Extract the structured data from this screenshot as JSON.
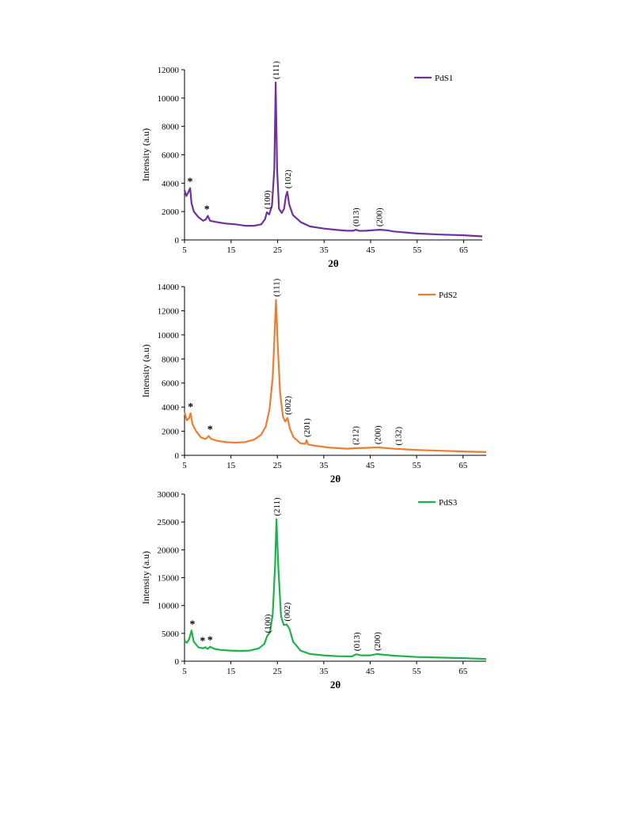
{
  "chart_data": [
    {
      "type": "line",
      "xlabel": "2θ",
      "ylabel": "Intensity (a.u)",
      "xlim": [
        5,
        69
      ],
      "ylim": [
        0,
        12000
      ],
      "xticks": [
        "5",
        "15",
        "25",
        "35",
        "45",
        "55",
        "65"
      ],
      "yticks": [
        "0",
        "2000",
        "4000",
        "6000",
        "8000",
        "10000",
        "12000"
      ],
      "legend_position": "top-right",
      "series": [
        {
          "name": "PdS1",
          "color": "#7030a0",
          "points": [
            [
              5,
              3500
            ],
            [
              5.4,
              3100
            ],
            [
              5.8,
              3350
            ],
            [
              6.2,
              3650
            ],
            [
              6.5,
              2600
            ],
            [
              7,
              2000
            ],
            [
              8,
              1600
            ],
            [
              9,
              1350
            ],
            [
              9.6,
              1450
            ],
            [
              10,
              1700
            ],
            [
              10.5,
              1350
            ],
            [
              12,
              1250
            ],
            [
              14,
              1150
            ],
            [
              16,
              1100
            ],
            [
              18,
              1000
            ],
            [
              20,
              1000
            ],
            [
              21.5,
              1100
            ],
            [
              22.3,
              1450
            ],
            [
              22.7,
              1950
            ],
            [
              23.2,
              1800
            ],
            [
              23.8,
              2400
            ],
            [
              24.3,
              5000
            ],
            [
              24.6,
              11100
            ],
            [
              24.9,
              5000
            ],
            [
              25.3,
              2200
            ],
            [
              25.9,
              1900
            ],
            [
              26.4,
              2200
            ],
            [
              26.8,
              3100
            ],
            [
              27.1,
              3400
            ],
            [
              27.5,
              2500
            ],
            [
              28.3,
              1750
            ],
            [
              30,
              1250
            ],
            [
              32,
              950
            ],
            [
              35,
              800
            ],
            [
              38,
              700
            ],
            [
              40,
              650
            ],
            [
              41.3,
              650
            ],
            [
              41.8,
              720
            ],
            [
              42.5,
              640
            ],
            [
              44,
              650
            ],
            [
              46,
              700
            ],
            [
              47,
              720
            ],
            [
              48.5,
              680
            ],
            [
              50,
              600
            ],
            [
              55,
              450
            ],
            [
              60,
              380
            ],
            [
              65,
              330
            ],
            [
              69,
              250
            ]
          ]
        }
      ],
      "annotations": [
        {
          "x": 6.2,
          "y": 3650,
          "text": "*"
        },
        {
          "x": 9.8,
          "y": 1700,
          "text": "*"
        },
        {
          "x": 22.7,
          "y": 1950,
          "text": "(100)"
        },
        {
          "x": 24.6,
          "y": 11100,
          "text": "(111)"
        },
        {
          "x": 27.1,
          "y": 3400,
          "text": "(102)"
        },
        {
          "x": 41.8,
          "y": 720,
          "text": "(013)"
        },
        {
          "x": 46.8,
          "y": 720,
          "text": "(200)"
        }
      ]
    },
    {
      "type": "line",
      "xlabel": "2θ",
      "ylabel": "Intensity (a.u)",
      "xlim": [
        5,
        70
      ],
      "ylim": [
        0,
        14000
      ],
      "xticks": [
        "5",
        "15",
        "25",
        "35",
        "45",
        "55",
        "65"
      ],
      "yticks": [
        "0",
        "2000",
        "4000",
        "6000",
        "8000",
        "10000",
        "12000",
        "14000"
      ],
      "legend_position": "top-right",
      "series": [
        {
          "name": "PdS2",
          "color": "#ed7d31",
          "points": [
            [
              5,
              3600
            ],
            [
              5.5,
              2900
            ],
            [
              6,
              3100
            ],
            [
              6.3,
              3500
            ],
            [
              6.7,
              2600
            ],
            [
              7.5,
              2000
            ],
            [
              8.5,
              1500
            ],
            [
              9.5,
              1350
            ],
            [
              10.2,
              1600
            ],
            [
              10.8,
              1350
            ],
            [
              12,
              1200
            ],
            [
              14,
              1100
            ],
            [
              16,
              1050
            ],
            [
              18,
              1100
            ],
            [
              20,
              1300
            ],
            [
              21.5,
              1700
            ],
            [
              22.5,
              2400
            ],
            [
              23.3,
              3800
            ],
            [
              24,
              6500
            ],
            [
              24.4,
              10000
            ],
            [
              24.7,
              12900
            ],
            [
              25.1,
              9000
            ],
            [
              25.6,
              5200
            ],
            [
              26.2,
              3200
            ],
            [
              26.7,
              2800
            ],
            [
              27.2,
              3100
            ],
            [
              27.7,
              2200
            ],
            [
              28.5,
              1500
            ],
            [
              30,
              1000
            ],
            [
              31,
              950
            ],
            [
              31.3,
              1250
            ],
            [
              31.6,
              900
            ],
            [
              33,
              800
            ],
            [
              36,
              650
            ],
            [
              40,
              550
            ],
            [
              42,
              600
            ],
            [
              44,
              620
            ],
            [
              46,
              650
            ],
            [
              47,
              650
            ],
            [
              50,
              550
            ],
            [
              55,
              450
            ],
            [
              60,
              380
            ],
            [
              65,
              320
            ],
            [
              70,
              270
            ]
          ]
        }
      ],
      "annotations": [
        {
          "x": 6.3,
          "y": 3500,
          "text": "*"
        },
        {
          "x": 10.5,
          "y": 1600,
          "text": "*"
        },
        {
          "x": 24.7,
          "y": 12900,
          "text": "(111)"
        },
        {
          "x": 27.2,
          "y": 3100,
          "text": "(002)"
        },
        {
          "x": 31.3,
          "y": 1250,
          "text": "(201)"
        },
        {
          "x": 41.8,
          "y": 600,
          "text": "(212)"
        },
        {
          "x": 46.5,
          "y": 650,
          "text": "(200)"
        },
        {
          "x": 51,
          "y": 550,
          "text": "(132)"
        }
      ]
    },
    {
      "type": "line",
      "xlabel": "2θ",
      "ylabel": "Intensity (a.u)",
      "xlim": [
        5,
        70
      ],
      "ylim": [
        0,
        30000
      ],
      "xticks": [
        "5",
        "15",
        "25",
        "35",
        "45",
        "55",
        "65"
      ],
      "yticks": [
        "0",
        "5000",
        "10000",
        "15000",
        "20000",
        "25000",
        "30000"
      ],
      "legend_position": "top-right",
      "series": [
        {
          "name": "PdS3",
          "color": "#1eb24b",
          "points": [
            [
              5,
              3700
            ],
            [
              5.5,
              3300
            ],
            [
              6,
              4000
            ],
            [
              6.5,
              5500
            ],
            [
              7,
              3500
            ],
            [
              8,
              2500
            ],
            [
              9,
              2300
            ],
            [
              9.5,
              2500
            ],
            [
              10,
              2200
            ],
            [
              10.5,
              2600
            ],
            [
              11.5,
              2200
            ],
            [
              13,
              2000
            ],
            [
              15,
              1900
            ],
            [
              17,
              1850
            ],
            [
              19,
              1900
            ],
            [
              21,
              2300
            ],
            [
              22.2,
              3100
            ],
            [
              22.8,
              4500
            ],
            [
              23.4,
              5200
            ],
            [
              24,
              8500
            ],
            [
              24.5,
              17000
            ],
            [
              24.8,
              25500
            ],
            [
              25.2,
              17000
            ],
            [
              25.8,
              8000
            ],
            [
              26.4,
              6500
            ],
            [
              27,
              6600
            ],
            [
              27.6,
              5800
            ],
            [
              28.4,
              3500
            ],
            [
              30,
              1900
            ],
            [
              32,
              1300
            ],
            [
              35,
              1050
            ],
            [
              38,
              900
            ],
            [
              41,
              850
            ],
            [
              42,
              1250
            ],
            [
              43,
              1050
            ],
            [
              45,
              1050
            ],
            [
              46.5,
              1300
            ],
            [
              47.5,
              1200
            ],
            [
              50,
              1000
            ],
            [
              55,
              750
            ],
            [
              60,
              650
            ],
            [
              65,
              550
            ],
            [
              70,
              400
            ]
          ]
        }
      ],
      "annotations": [
        {
          "x": 6.7,
          "y": 5500,
          "text": "*"
        },
        {
          "x": 8.9,
          "y": 2500,
          "text": "*"
        },
        {
          "x": 10.5,
          "y": 2600,
          "text": "*"
        },
        {
          "x": 22.8,
          "y": 4500,
          "text": "(100)"
        },
        {
          "x": 24.8,
          "y": 25500,
          "text": "(211)"
        },
        {
          "x": 27.0,
          "y": 6600,
          "text": "(002)"
        },
        {
          "x": 42,
          "y": 1250,
          "text": "(013)"
        },
        {
          "x": 46.5,
          "y": 1300,
          "text": "(200)"
        }
      ]
    }
  ]
}
